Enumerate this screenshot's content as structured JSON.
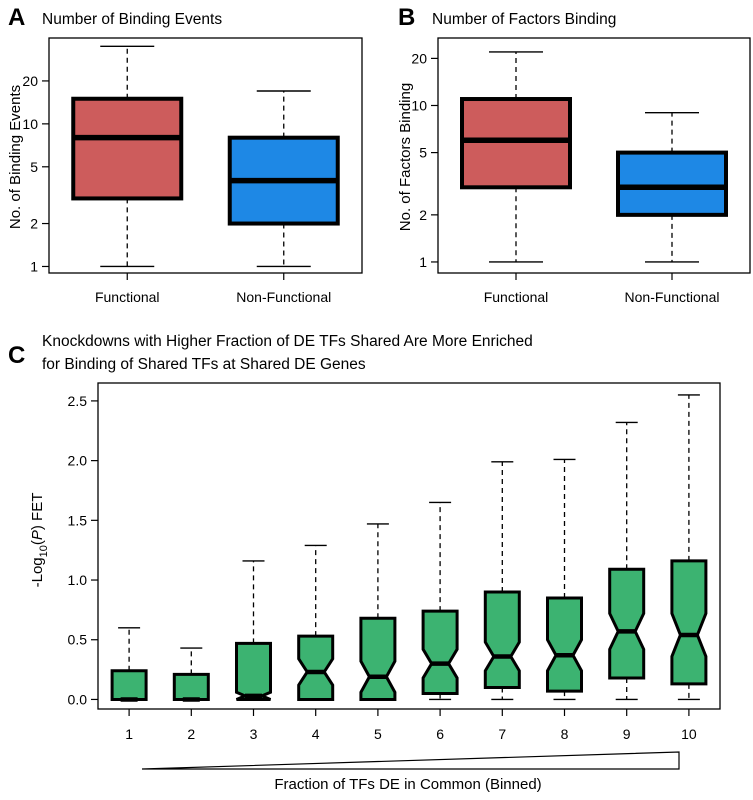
{
  "colors": {
    "functional": "#cd5c5c",
    "non_functional": "#1e88e5",
    "knockdown": "#3cb371"
  },
  "chart_data": [
    {
      "id": "A",
      "letter": "A",
      "type": "box",
      "title": "Number of Binding Events",
      "xlabel": "",
      "ylabel": "No. of Binding Events",
      "yscale": "log",
      "ylim": [
        0.9,
        40
      ],
      "yticks": [
        1,
        2,
        5,
        10,
        20
      ],
      "categories": [
        "Functional",
        "Non-Functional"
      ],
      "boxes": [
        {
          "category": "Functional",
          "min": 1,
          "q1": 3,
          "median": 8,
          "q3": 15,
          "max": 35,
          "color": "functional"
        },
        {
          "category": "Non-Functional",
          "min": 1,
          "q1": 2,
          "median": 4,
          "q3": 8,
          "max": 17,
          "color": "non_functional"
        }
      ]
    },
    {
      "id": "B",
      "letter": "B",
      "type": "box",
      "title": "Number of Factors Binding",
      "xlabel": "",
      "ylabel": "No. of Factors Binding",
      "yscale": "log",
      "ylim": [
        0.85,
        27
      ],
      "yticks": [
        1,
        2,
        5,
        10,
        20
      ],
      "categories": [
        "Functional",
        "Non-Functional"
      ],
      "boxes": [
        {
          "category": "Functional",
          "min": 1,
          "q1": 3,
          "median": 6,
          "q3": 11,
          "max": 22,
          "color": "functional"
        },
        {
          "category": "Non-Functional",
          "min": 1,
          "q1": 2,
          "median": 3,
          "q3": 5,
          "max": 9,
          "color": "non_functional"
        }
      ]
    },
    {
      "id": "C",
      "letter": "C",
      "type": "box",
      "notched": true,
      "title": [
        "Knockdowns with Higher Fraction of DE TFs Shared Are More Enriched",
        "for Binding of Shared TFs at Shared DE Genes"
      ],
      "xlabel": "Fraction of TFs DE in Common (Binned)",
      "ylabel_parts": [
        "-Log",
        "10",
        "(",
        "P",
        ") FET"
      ],
      "yscale": "linear",
      "ylim": [
        -0.08,
        2.65
      ],
      "yticks": [
        0.0,
        0.5,
        1.0,
        1.5,
        2.0,
        2.5
      ],
      "ytick_labels": [
        "0.0",
        "0.5",
        "1.0",
        "1.5",
        "2.0",
        "2.5"
      ],
      "categories": [
        "1",
        "2",
        "3",
        "4",
        "5",
        "6",
        "7",
        "8",
        "9",
        "10"
      ],
      "boxes": [
        {
          "category": "1",
          "min": 0.0,
          "q1": 0.0,
          "median": 0.0,
          "q3": 0.24,
          "max": 0.6,
          "notch": [
            0.0,
            0.0
          ],
          "color": "knockdown"
        },
        {
          "category": "2",
          "min": 0.0,
          "q1": 0.0,
          "median": 0.0,
          "q3": 0.21,
          "max": 0.43,
          "notch": [
            0.0,
            0.0
          ],
          "color": "knockdown"
        },
        {
          "category": "3",
          "min": 0.0,
          "q1": 0.0,
          "median": 0.03,
          "q3": 0.47,
          "max": 1.16,
          "notch": [
            0.0,
            0.06
          ],
          "color": "knockdown"
        },
        {
          "category": "4",
          "min": 0.0,
          "q1": 0.0,
          "median": 0.23,
          "q3": 0.53,
          "max": 1.29,
          "notch": [
            0.12,
            0.34
          ],
          "color": "knockdown"
        },
        {
          "category": "5",
          "min": 0.0,
          "q1": 0.0,
          "median": 0.19,
          "q3": 0.68,
          "max": 1.47,
          "notch": [
            0.06,
            0.32
          ],
          "color": "knockdown"
        },
        {
          "category": "6",
          "min": 0.0,
          "q1": 0.05,
          "median": 0.3,
          "q3": 0.74,
          "max": 1.65,
          "notch": [
            0.18,
            0.42
          ],
          "color": "knockdown"
        },
        {
          "category": "7",
          "min": 0.0,
          "q1": 0.1,
          "median": 0.36,
          "q3": 0.9,
          "max": 1.99,
          "notch": [
            0.24,
            0.48
          ],
          "color": "knockdown"
        },
        {
          "category": "8",
          "min": 0.0,
          "q1": 0.07,
          "median": 0.37,
          "q3": 0.85,
          "max": 2.01,
          "notch": [
            0.24,
            0.5
          ],
          "color": "knockdown"
        },
        {
          "category": "9",
          "min": 0.0,
          "q1": 0.18,
          "median": 0.57,
          "q3": 1.09,
          "max": 2.32,
          "notch": [
            0.42,
            0.72
          ],
          "color": "knockdown"
        },
        {
          "category": "10",
          "min": 0.0,
          "q1": 0.13,
          "median": 0.54,
          "q3": 1.16,
          "max": 2.55,
          "notch": [
            0.36,
            0.72
          ],
          "color": "knockdown"
        }
      ]
    }
  ]
}
